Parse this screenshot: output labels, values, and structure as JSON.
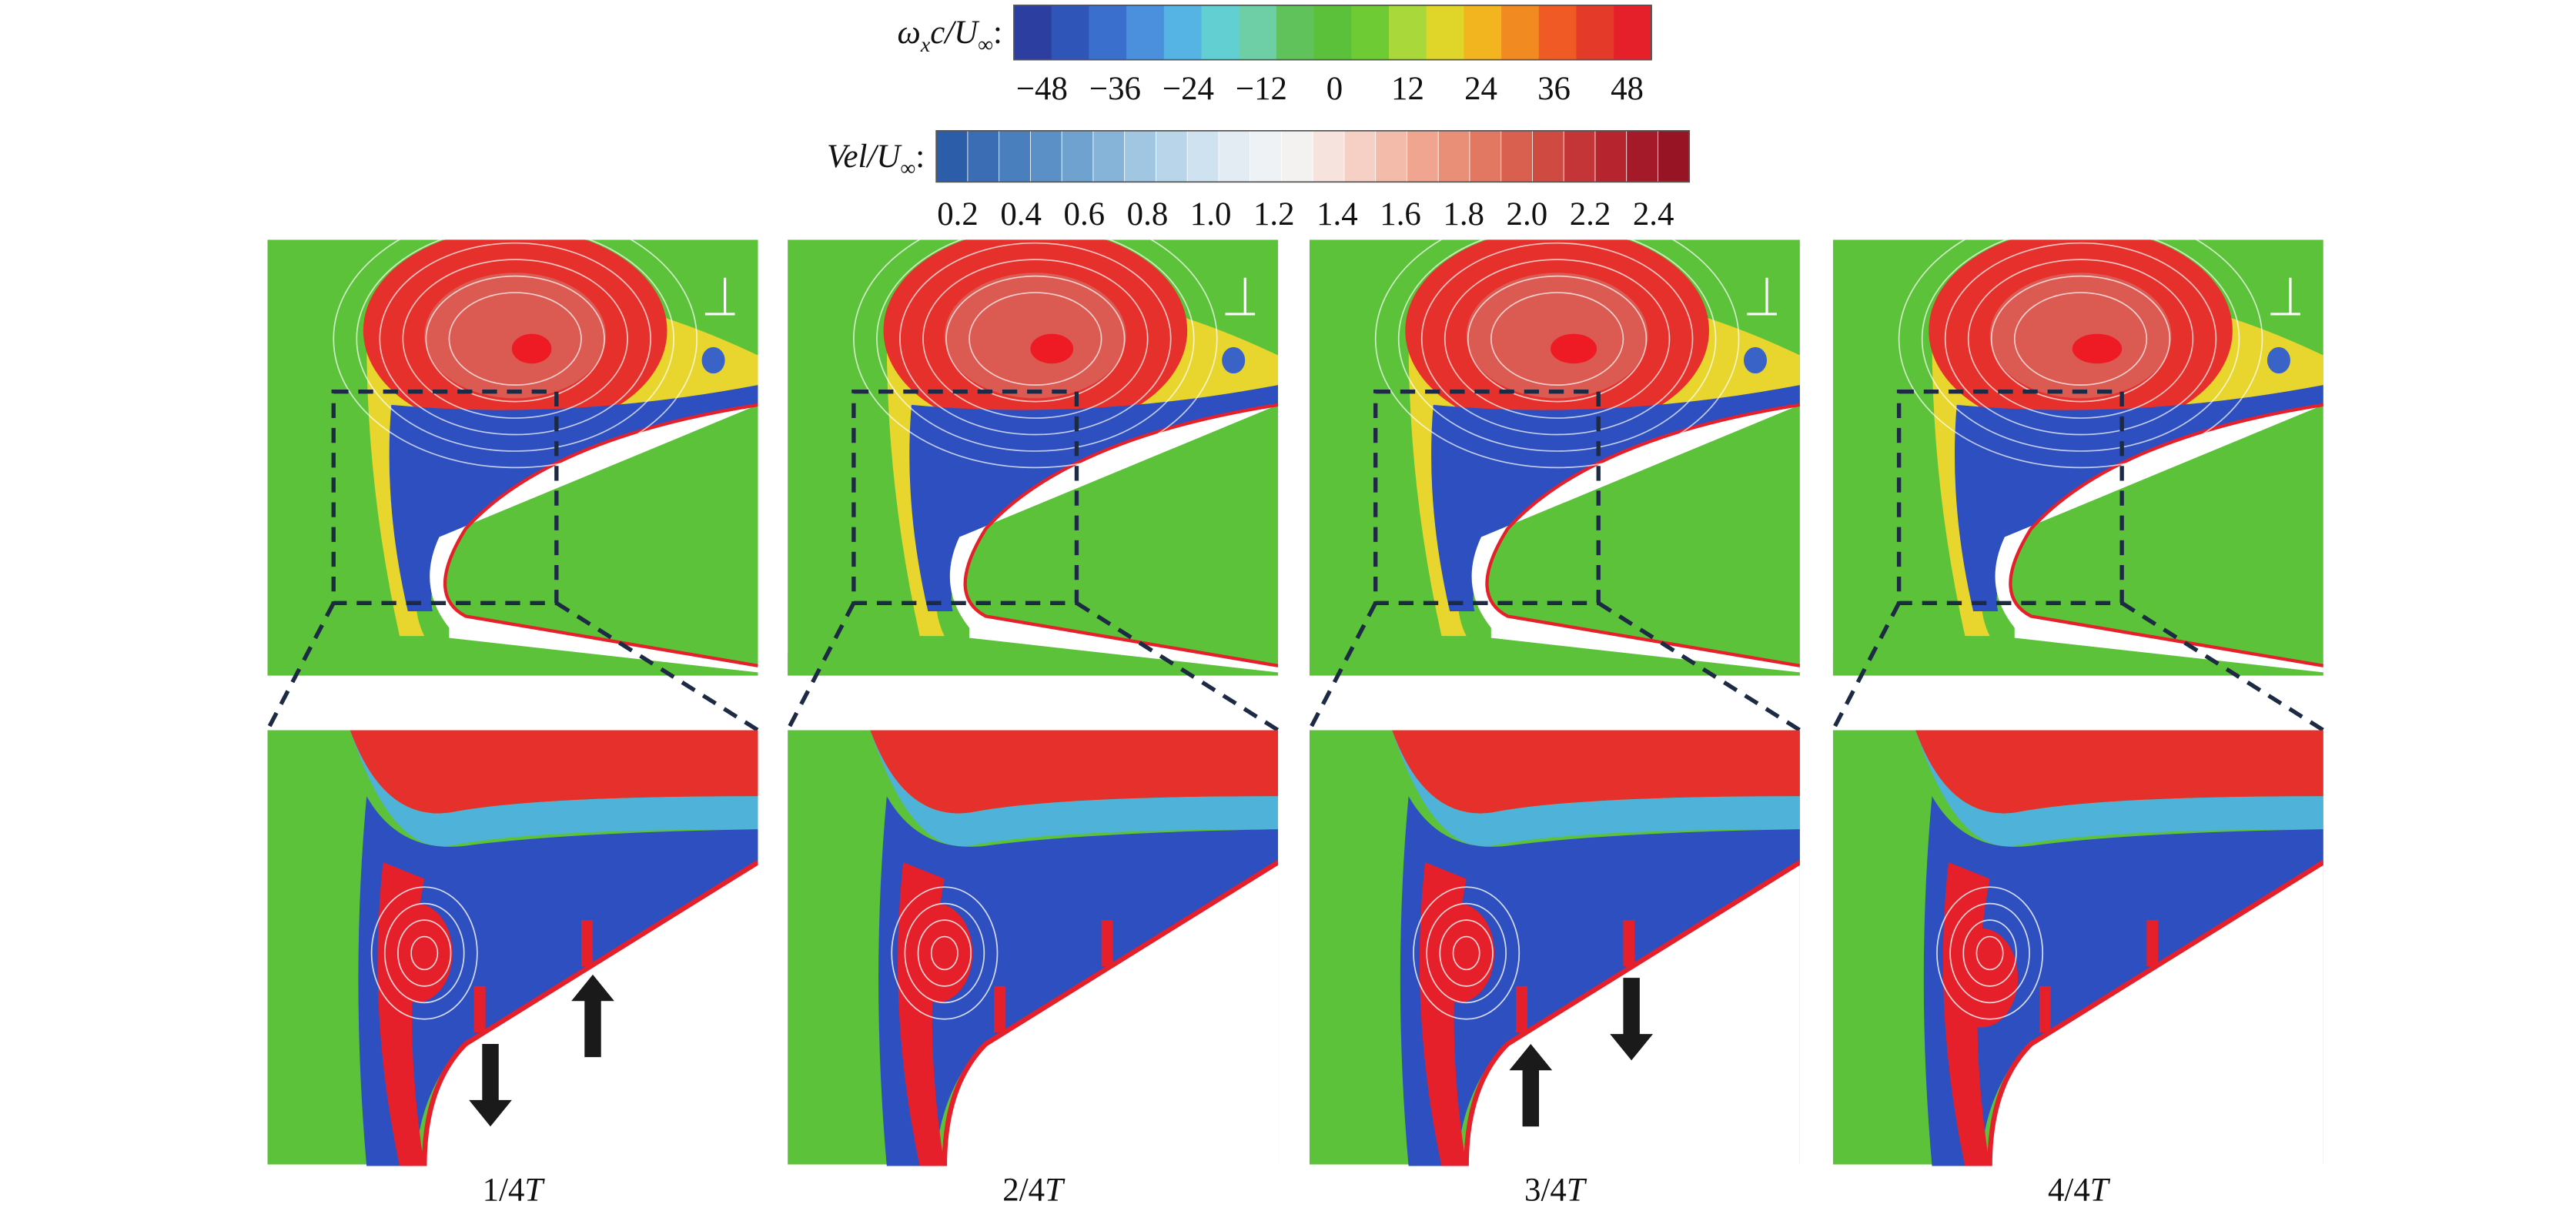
{
  "colorbars": [
    {
      "label": [
        "ω",
        "x",
        "c/U",
        "∞",
        ":"
      ],
      "ticks": [
        "−48",
        "−36",
        "−24",
        "−12",
        "0",
        "12",
        "24",
        "36",
        "48"
      ]
    },
    {
      "label": [
        "Vel",
        "/U",
        "∞",
        ":"
      ],
      "ticks": [
        "0.2",
        "0.4",
        "0.6",
        "0.8",
        "1.0",
        "1.2",
        "1.4",
        "1.6",
        "1.8",
        "2.0",
        "2.2",
        "2.4"
      ]
    }
  ],
  "panels": [
    {
      "label": [
        "1/4",
        "T"
      ]
    },
    {
      "label": [
        "2/4",
        "T"
      ]
    },
    {
      "label": [
        "3/4",
        "T"
      ]
    },
    {
      "label": [
        "4/4",
        "T"
      ]
    }
  ]
}
